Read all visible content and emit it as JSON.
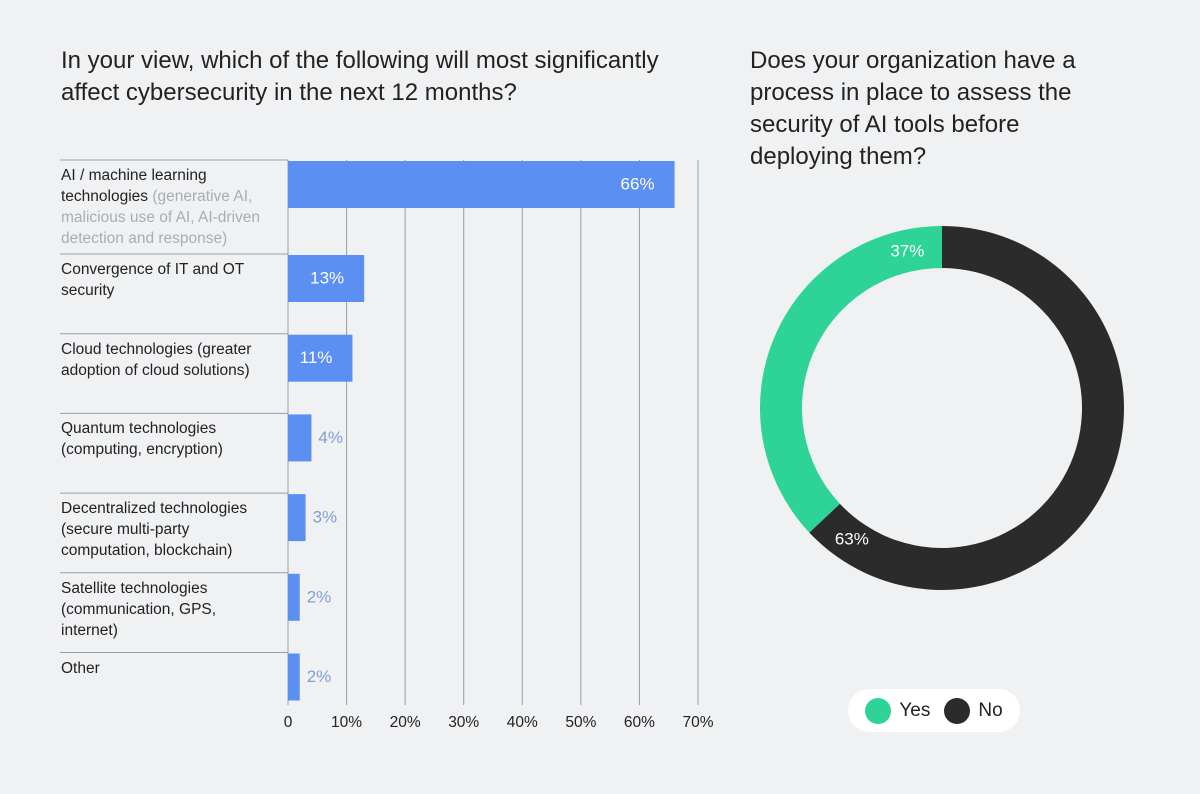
{
  "chart_data": [
    {
      "type": "hbar",
      "title": "In your view, which of the following will most significantly affect cybersecurity in the next 12 months?",
      "categories": [
        "AI / machine learning technologies",
        "Convergence of IT and OT security",
        "Cloud technologies (greater adoption of cloud solutions)",
        "Quantum technologies (computing, encryption)",
        "Decentralized technologies (secure multi-party computation, blockchain)",
        "Satellite technologies (communication, GPS, internet)",
        "Other"
      ],
      "category_notes": [
        "(generative AI, malicious use of AI, AI-driven detection and response)",
        null,
        null,
        null,
        null,
        null,
        null
      ],
      "values": [
        66,
        13,
        11,
        4,
        3,
        2,
        2
      ],
      "value_labels": [
        "66%",
        "13%",
        "11%",
        "4%",
        "3%",
        "2%",
        "2%"
      ],
      "color": "#5b8ff2",
      "xlim": [
        0,
        70
      ],
      "xticks": [
        0,
        {
          "value": 10,
          "label": "10%"
        },
        {
          "value": 20,
          "label": "20%"
        },
        {
          "value": 30,
          "label": "30%"
        },
        {
          "value": 40,
          "label": "40%"
        },
        {
          "value": 50,
          "label": "50%"
        },
        {
          "value": 60,
          "label": "60%"
        },
        {
          "value": 70,
          "label": "70%"
        }
      ],
      "grid": true
    },
    {
      "type": "donut",
      "title": "Does your organization have a process in place to assess the security of AI tools before deploying them?",
      "categories": [
        "Yes",
        "No"
      ],
      "values": [
        37,
        63
      ],
      "value_labels": [
        "37%",
        "63%"
      ],
      "colors": [
        "#2ed397",
        "#2b2b2b"
      ]
    }
  ]
}
